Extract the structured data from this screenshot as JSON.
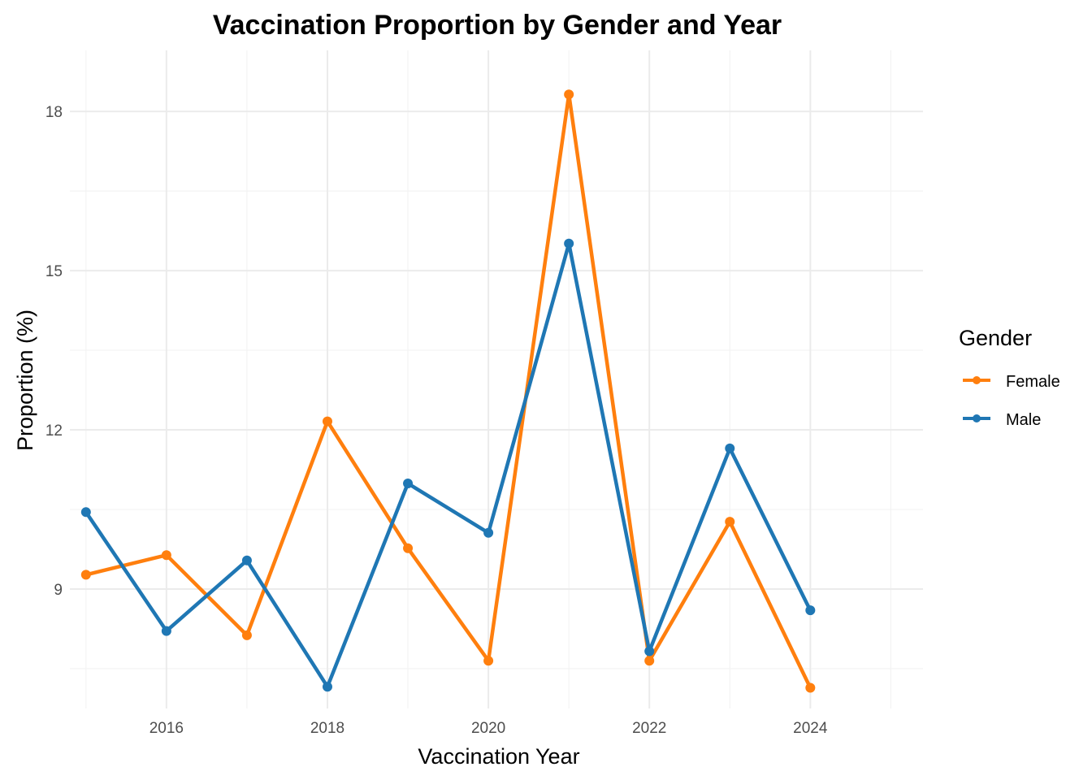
{
  "chart_data": {
    "type": "line",
    "title": "Vaccination Proportion by Gender and Year",
    "xlabel": "Vaccination Year",
    "ylabel": "Proportion (%)",
    "x": [
      2015,
      2016,
      2017,
      2018,
      2019,
      2020,
      2021,
      2022,
      2023,
      2024
    ],
    "x_ticks": [
      "2016",
      "2018",
      "2020",
      "2022",
      "2024"
    ],
    "y_ticks": [
      "9",
      "12",
      "15",
      "18"
    ],
    "xlim": [
      2014.8,
      2025.4
    ],
    "ylim": [
      6.75,
      19.15
    ],
    "grid": true,
    "legend": {
      "title": "Gender",
      "placement": "right"
    },
    "series": [
      {
        "name": "Female",
        "color": "#ff7f0e",
        "values": [
          9.27,
          9.64,
          8.13,
          12.16,
          9.77,
          7.65,
          18.32,
          7.65,
          10.27,
          7.14
        ]
      },
      {
        "name": "Male",
        "color": "#1f77b4",
        "values": [
          10.45,
          8.21,
          9.54,
          7.16,
          10.99,
          10.06,
          15.51,
          7.83,
          11.65,
          8.6
        ]
      }
    ]
  }
}
